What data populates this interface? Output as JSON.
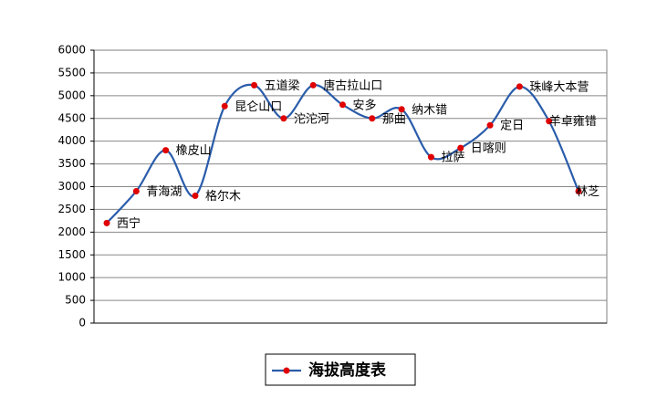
{
  "chart_data": {
    "type": "line",
    "categories": [
      "西宁",
      "青海湖",
      "橡皮山",
      "格尔木",
      "昆仑山口",
      "五道梁",
      "沱沱河",
      "唐古拉山口",
      "安多",
      "那曲",
      "纳木错",
      "拉萨",
      "日喀则",
      "定日",
      "珠峰大本营",
      "羊卓雍错",
      "林芝"
    ],
    "series": [
      {
        "name": "海拔高度表",
        "color": "#2a5caa",
        "values": [
          2200,
          2900,
          3800,
          2800,
          4770,
          5230,
          4500,
          5231,
          4800,
          4500,
          4700,
          3650,
          3850,
          4350,
          5200,
          4440,
          2900
        ]
      }
    ],
    "marker_color": "#e00000",
    "ylim": [
      0,
      6000
    ],
    "yticks": [
      0,
      500,
      1000,
      1500,
      2000,
      2500,
      3000,
      3500,
      4000,
      4500,
      5000,
      5500,
      6000
    ],
    "grid": true,
    "legend": "bottom"
  }
}
